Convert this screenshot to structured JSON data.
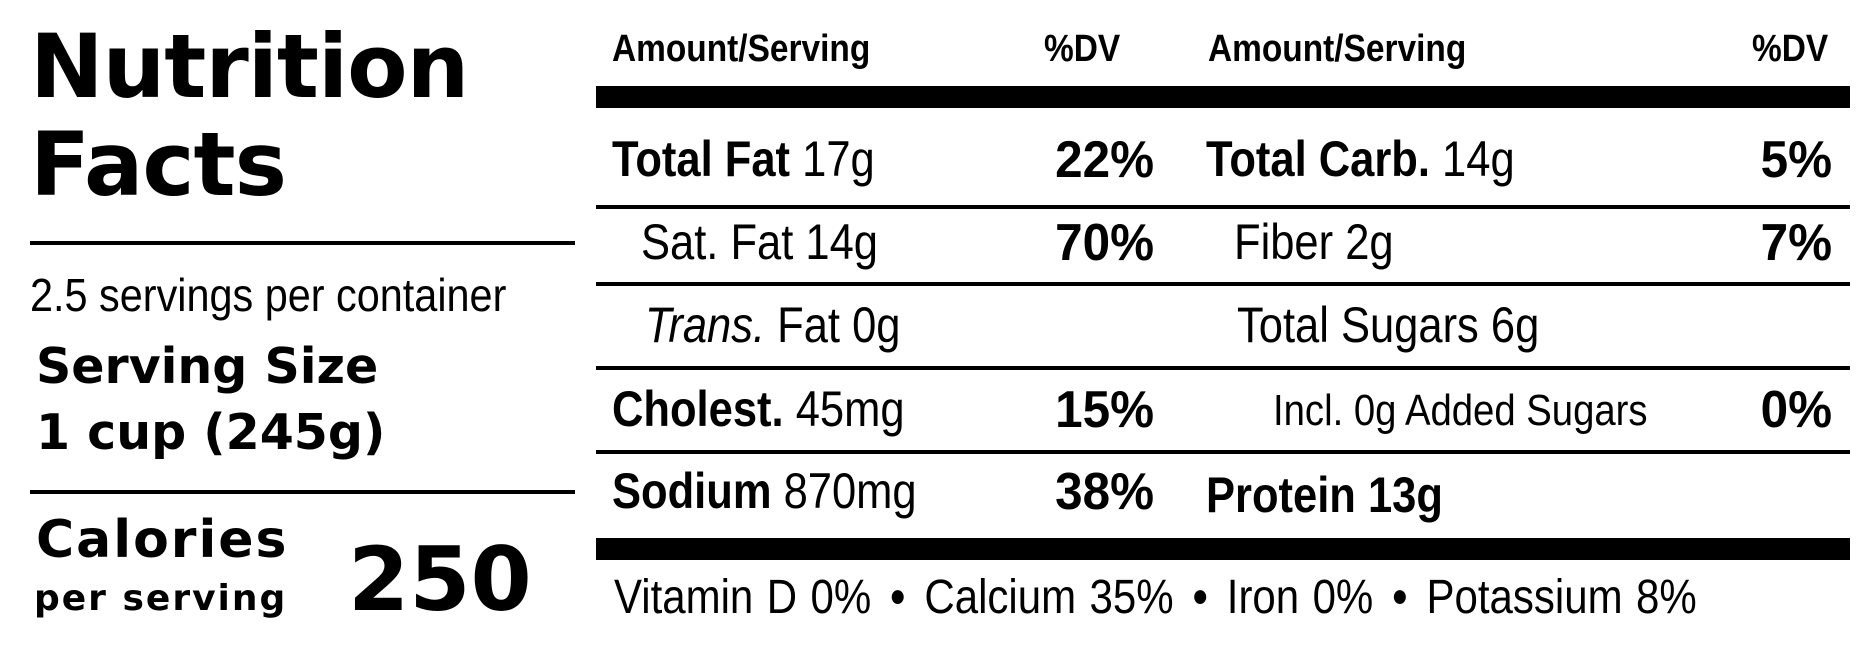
{
  "label": {
    "title_line1": "Nutrition",
    "title_line2": "Facts",
    "servings_per_container": "2.5 servings per container",
    "serving_size_label": "Serving Size",
    "serving_size_value": "1 cup (245g)",
    "calories_label": "Calories",
    "per_serving": "per serving",
    "calories_value": "250",
    "header": {
      "amount_serving_left": "Amount/Serving",
      "dv_left": "%DV",
      "amount_serving_right": "Amount/Serving",
      "dv_right": "%DV"
    },
    "left_column": [
      {
        "name": "Total Fat",
        "amount": "17g",
        "dv": "22%"
      },
      {
        "name": "Sat. Fat",
        "amount": "14g",
        "dv": "70%"
      },
      {
        "name": "Trans.",
        "amount": "Fat 0g",
        "dv": ""
      },
      {
        "name": "Cholest.",
        "amount": "45mg",
        "dv": "15%"
      },
      {
        "name": "Sodium",
        "amount": "870mg",
        "dv": "38%"
      }
    ],
    "right_column": [
      {
        "name": "Total Carb.",
        "amount": "14g",
        "dv": "5%"
      },
      {
        "name": "Fiber",
        "amount": "2g",
        "dv": "7%"
      },
      {
        "name": "Total Sugars",
        "amount": "6g",
        "dv": ""
      },
      {
        "name": "Incl. 0g Added Sugars",
        "amount": "",
        "dv": "0%"
      },
      {
        "name": "Protein",
        "amount": "13g",
        "dv": ""
      }
    ],
    "vitamins": [
      {
        "text": "Vitamin D 0%"
      },
      {
        "text": "Calcium 35%"
      },
      {
        "text": "Iron 0%"
      },
      {
        "text": "Potassium 8%"
      }
    ],
    "separator": "•"
  }
}
